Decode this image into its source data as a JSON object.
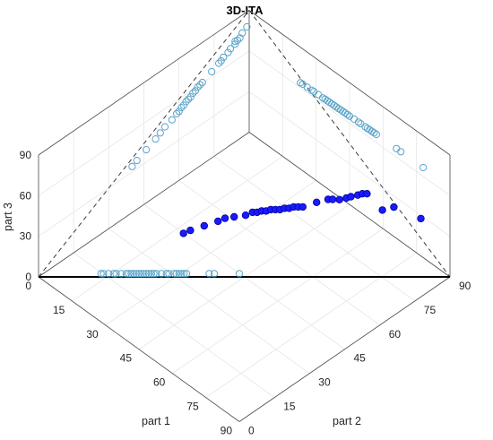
{
  "chart_data": {
    "type": "scatter",
    "title": "3D-ITA",
    "xlabel": "part 1",
    "ylabel": "part 2",
    "zlabel": "part 3",
    "xlim": [
      0,
      90
    ],
    "ylim": [
      0,
      90
    ],
    "zlim": [
      0,
      90
    ],
    "xticks": [
      "0",
      "15",
      "30",
      "45",
      "60",
      "75",
      "90"
    ],
    "yticks": [
      "0",
      "15",
      "30",
      "45",
      "60",
      "75",
      "90"
    ],
    "zticks": [
      "0",
      "30",
      "60",
      "90"
    ],
    "grid": true,
    "colors": {
      "points": "#1a1aff",
      "points_edge": "#00009a",
      "projections": "#5aa3c8",
      "axes": "#262626",
      "grid": "#e6e6e6",
      "ita_line": "#000000",
      "dashed": "#3a3a3a"
    },
    "series": [
      {
        "x": [
          23,
          24,
          26,
          28,
          29,
          31,
          33,
          34,
          35,
          36,
          37,
          38,
          39,
          40,
          41,
          42,
          43,
          44,
          45,
          47,
          49,
          50,
          52,
          53,
          54,
          55,
          56,
          57,
          66,
          68,
          78
        ],
        "y": [
          40,
          42,
          46,
          50,
          52,
          54,
          57,
          59,
          60,
          61,
          62,
          63,
          64,
          65,
          66,
          67,
          68,
          69,
          70,
          74,
          77,
          78,
          79,
          81,
          82,
          84,
          85,
          86,
          84,
          87,
          89
        ],
        "z": [
          12,
          13,
          14,
          15,
          16,
          17,
          17,
          18,
          18,
          19,
          19,
          20,
          20,
          20,
          21,
          21,
          22,
          22,
          22,
          23,
          24,
          24,
          25,
          25,
          26,
          26,
          27,
          27,
          28,
          29,
          30
        ]
      }
    ],
    "reference_line": {
      "from": [
        0,
        0,
        0
      ],
      "to": [
        90,
        90,
        0
      ]
    },
    "diagonals": [
      {
        "from": [
          0,
          0,
          0
        ],
        "to": [
          0,
          90,
          90
        ]
      },
      {
        "from": [
          0,
          0,
          0
        ],
        "to": [
          90,
          90,
          0
        ]
      },
      {
        "from": [
          0,
          90,
          90
        ],
        "to": [
          90,
          90,
          0
        ]
      }
    ]
  }
}
